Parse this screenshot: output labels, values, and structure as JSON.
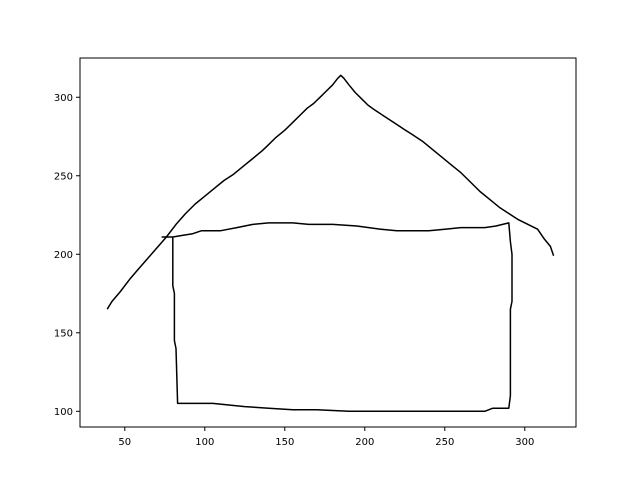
{
  "chart_data": {
    "type": "line",
    "title": "",
    "xlabel": "",
    "ylabel": "",
    "xlim": [
      22,
      332
    ],
    "ylim": [
      90,
      325
    ],
    "grid": false,
    "legend": null,
    "x_ticks": [
      50,
      100,
      150,
      200,
      250,
      300
    ],
    "y_ticks": [
      100,
      150,
      200,
      250,
      300
    ],
    "colors": {
      "line": "#000000",
      "axes": "#000000",
      "background": "#ffffff"
    },
    "series": [
      {
        "points": [
          [
            39,
            165
          ],
          [
            42,
            170
          ],
          [
            47,
            176
          ],
          [
            53,
            184
          ],
          [
            58,
            190
          ],
          [
            64,
            197
          ],
          [
            70,
            204
          ],
          [
            76,
            211
          ],
          [
            82,
            219
          ],
          [
            88,
            226
          ],
          [
            94,
            232
          ],
          [
            100,
            237
          ],
          [
            106,
            242
          ],
          [
            112,
            247
          ],
          [
            118,
            251
          ],
          [
            124,
            256
          ],
          [
            130,
            261
          ],
          [
            136,
            266
          ],
          [
            140,
            270
          ],
          [
            144,
            274
          ],
          [
            150,
            279
          ],
          [
            156,
            285
          ],
          [
            160,
            289
          ],
          [
            164,
            293
          ],
          [
            168,
            296
          ],
          [
            172,
            300
          ],
          [
            176,
            304
          ],
          [
            180,
            308
          ],
          [
            183,
            312
          ],
          [
            185,
            314
          ],
          [
            187,
            312
          ],
          [
            190,
            308
          ],
          [
            194,
            303
          ],
          [
            198,
            299
          ],
          [
            202,
            295
          ],
          [
            206,
            292
          ],
          [
            212,
            288
          ],
          [
            218,
            284
          ],
          [
            224,
            280
          ],
          [
            230,
            276
          ],
          [
            236,
            272
          ],
          [
            242,
            267
          ],
          [
            248,
            262
          ],
          [
            254,
            257
          ],
          [
            260,
            252
          ],
          [
            266,
            246
          ],
          [
            272,
            240
          ],
          [
            278,
            235
          ],
          [
            284,
            230
          ],
          [
            290,
            226
          ],
          [
            296,
            222
          ],
          [
            302,
            219
          ],
          [
            308,
            216
          ],
          [
            312,
            210
          ],
          [
            316,
            205
          ],
          [
            318,
            199
          ]
        ]
      },
      {
        "points": [
          [
            73,
            211
          ],
          [
            80,
            211
          ],
          [
            86,
            212
          ],
          [
            92,
            213
          ],
          [
            98,
            215
          ],
          [
            110,
            215
          ],
          [
            120,
            217
          ],
          [
            130,
            219
          ],
          [
            140,
            220
          ],
          [
            155,
            220
          ],
          [
            165,
            219
          ],
          [
            180,
            219
          ],
          [
            195,
            218
          ],
          [
            210,
            216
          ],
          [
            220,
            215
          ],
          [
            240,
            215
          ],
          [
            250,
            216
          ],
          [
            260,
            217
          ],
          [
            275,
            217
          ],
          [
            282,
            218
          ],
          [
            290,
            220
          ],
          [
            291,
            208
          ],
          [
            292,
            200
          ],
          [
            292,
            170
          ],
          [
            291,
            165
          ],
          [
            291,
            110
          ],
          [
            290,
            102
          ],
          [
            280,
            102
          ],
          [
            275,
            100
          ],
          [
            250,
            100
          ],
          [
            220,
            100
          ],
          [
            190,
            100
          ],
          [
            170,
            101
          ],
          [
            155,
            101
          ],
          [
            140,
            102
          ],
          [
            125,
            103
          ],
          [
            115,
            104
          ],
          [
            105,
            105
          ],
          [
            95,
            105
          ],
          [
            83,
            105
          ],
          [
            82,
            140
          ],
          [
            81,
            145
          ],
          [
            81,
            175
          ],
          [
            80,
            180
          ],
          [
            80,
            211
          ]
        ]
      }
    ]
  }
}
